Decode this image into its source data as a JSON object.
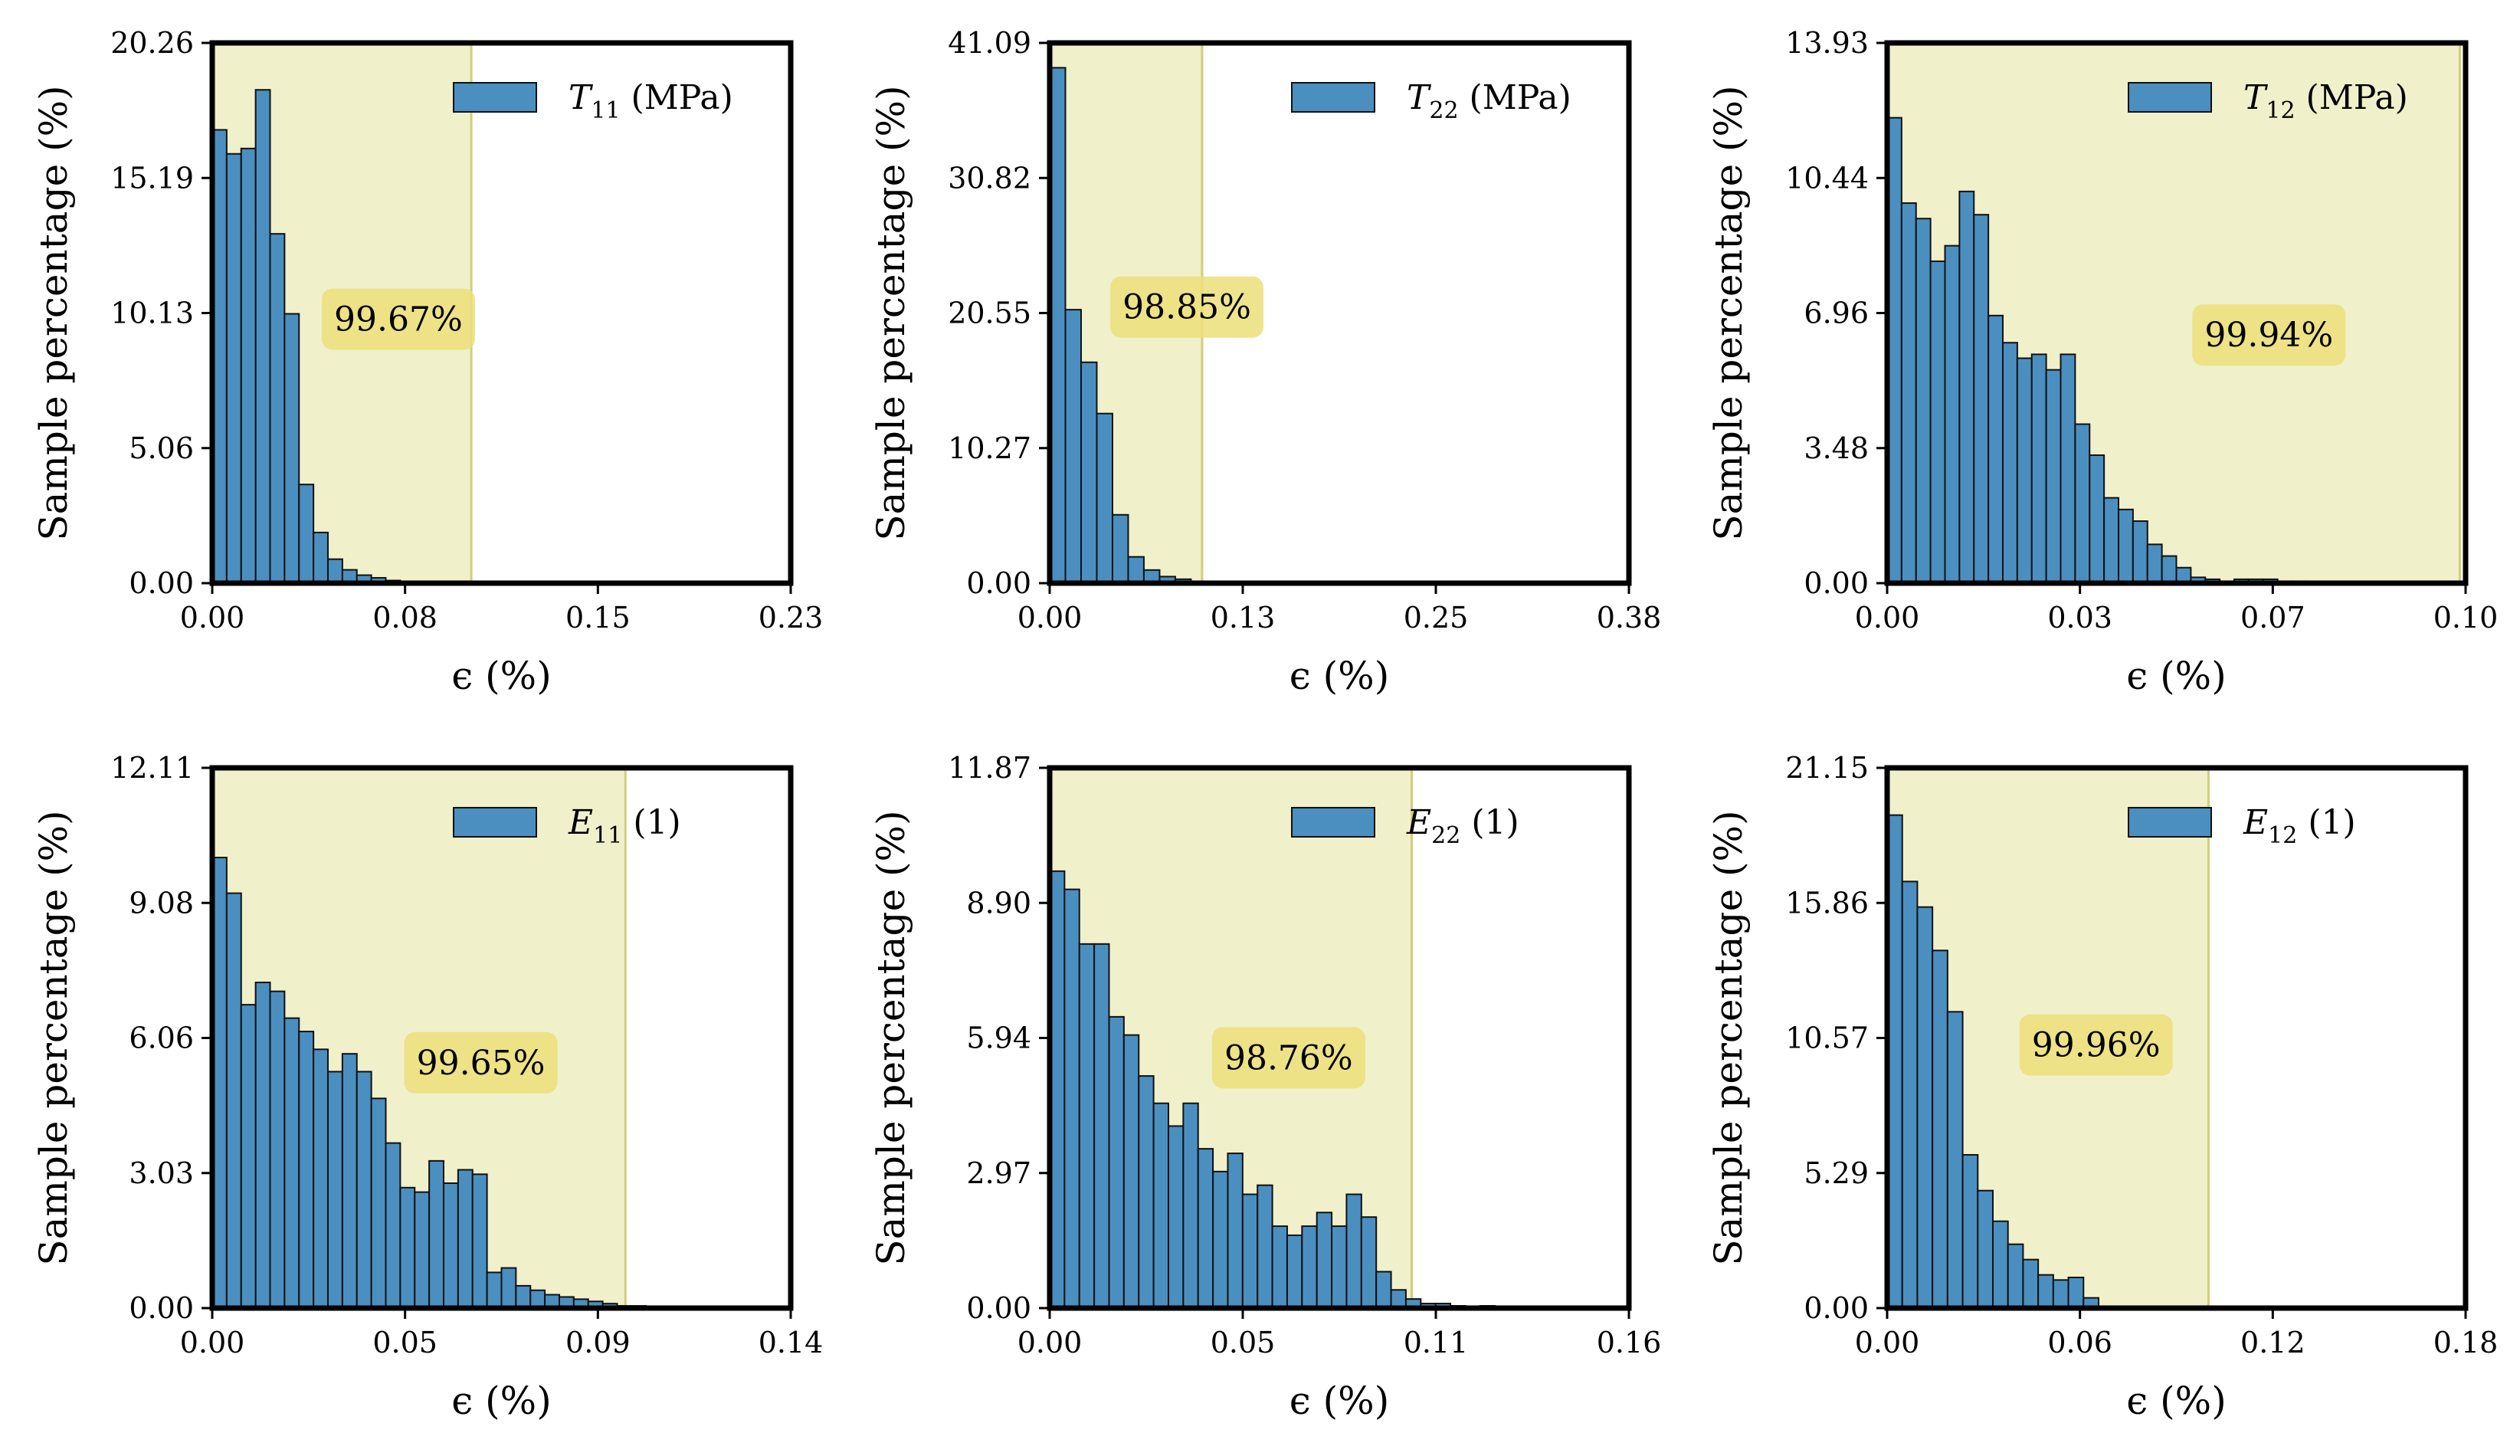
{
  "figure": {
    "colors": {
      "bar": "#4b8fc0",
      "bar_edge": "#111111",
      "shade": "#e6e6a8",
      "annotation_box": "#ecdf7a",
      "frame": "#000000"
    }
  },
  "chart_data": [
    {
      "type": "bar",
      "title": "",
      "legend": {
        "symbol": "T",
        "subscript": "11",
        "unit": "(MPa)"
      },
      "xlabel": "ϵ (%)",
      "ylabel": "Sample percentage (%)",
      "xlim": [
        0,
        0.23
      ],
      "ylim": [
        0,
        20.26
      ],
      "xticks": [
        "0.00",
        "0.08",
        "0.15",
        "0.23"
      ],
      "yticks": [
        "0.00",
        "5.06",
        "10.13",
        "15.19",
        "20.26"
      ],
      "bin_width": 0.00575,
      "values": [
        17.0,
        16.1,
        16.3,
        18.5,
        13.1,
        10.1,
        3.7,
        1.9,
        0.9,
        0.5,
        0.3,
        0.2,
        0.1,
        0.05,
        0.02
      ],
      "shaded_range": [
        0,
        0.103
      ],
      "annotation": {
        "text": "99.67%",
        "x": 0.074,
        "y": 9.9
      }
    },
    {
      "type": "bar",
      "title": "",
      "legend": {
        "symbol": "T",
        "subscript": "22",
        "unit": "(MPa)"
      },
      "xlabel": "ϵ (%)",
      "ylabel": "Sample percentage (%)",
      "xlim": [
        0,
        0.38
      ],
      "ylim": [
        0,
        41.09
      ],
      "xticks": [
        "0.00",
        "0.13",
        "0.25",
        "0.38"
      ],
      "yticks": [
        "0.00",
        "10.27",
        "20.55",
        "30.82",
        "41.09"
      ],
      "bin_width": 0.0103,
      "values": [
        39.2,
        20.8,
        16.8,
        12.9,
        5.2,
        2.0,
        1.0,
        0.5,
        0.3,
        0.1
      ],
      "shaded_range": [
        0,
        0.1
      ],
      "annotation": {
        "text": "98.85%",
        "x": 0.09,
        "y": 21.0
      }
    },
    {
      "type": "bar",
      "title": "",
      "legend": {
        "symbol": "T",
        "subscript": "12",
        "unit": "(MPa)"
      },
      "xlabel": "ϵ (%)",
      "ylabel": "Sample percentage (%)",
      "xlim": [
        0,
        0.1
      ],
      "ylim": [
        0,
        13.93
      ],
      "xticks": [
        "0.00",
        "0.03",
        "0.07",
        "0.10"
      ],
      "yticks": [
        "0.00",
        "3.48",
        "6.96",
        "10.44",
        "13.93"
      ],
      "bin_width": 0.0025,
      "values": [
        12.0,
        9.8,
        9.4,
        8.3,
        8.7,
        10.1,
        9.5,
        6.9,
        6.2,
        5.8,
        5.9,
        5.5,
        5.9,
        4.1,
        3.3,
        2.2,
        1.9,
        1.6,
        1.0,
        0.7,
        0.4,
        0.15,
        0.1,
        0.05,
        0.1,
        0.1,
        0.1,
        0.05,
        0.05,
        0.02,
        0.02,
        0.02
      ],
      "shaded_range": [
        0,
        0.099
      ],
      "annotation": {
        "text": "99.94%",
        "x": 0.066,
        "y": 6.4
      }
    },
    {
      "type": "bar",
      "title": "",
      "legend": {
        "symbol": "E",
        "subscript": "11",
        "unit": "(1)"
      },
      "xlabel": "ϵ (%)",
      "ylabel": "Sample percentage (%)",
      "xlim": [
        0,
        0.14
      ],
      "ylim": [
        0,
        12.11
      ],
      "xticks": [
        "0.00",
        "0.05",
        "0.09",
        "0.14"
      ],
      "yticks": [
        "0.00",
        "3.03",
        "6.06",
        "9.08",
        "12.11"
      ],
      "bin_width": 0.0035,
      "values": [
        10.1,
        9.3,
        6.8,
        7.3,
        7.1,
        6.5,
        6.2,
        5.8,
        5.3,
        5.7,
        5.3,
        4.7,
        3.7,
        2.7,
        2.6,
        3.3,
        2.8,
        3.1,
        3.0,
        0.8,
        0.9,
        0.5,
        0.4,
        0.3,
        0.25,
        0.2,
        0.15,
        0.1,
        0.05,
        0.05
      ],
      "shaded_range": [
        0,
        0.1
      ],
      "annotation": {
        "text": "99.65%",
        "x": 0.065,
        "y": 5.5
      }
    },
    {
      "type": "bar",
      "title": "",
      "legend": {
        "symbol": "E",
        "subscript": "22",
        "unit": "(1)"
      },
      "xlabel": "ϵ (%)",
      "ylabel": "Sample percentage (%)",
      "xlim": [
        0,
        0.16
      ],
      "ylim": [
        0,
        11.87
      ],
      "xticks": [
        "0.00",
        "0.05",
        "0.11",
        "0.16"
      ],
      "yticks": [
        "0.00",
        "2.97",
        "5.94",
        "8.90",
        "11.87"
      ],
      "bin_width": 0.0041,
      "values": [
        9.6,
        9.2,
        8.0,
        8.0,
        6.4,
        6.0,
        5.1,
        4.5,
        4.0,
        4.5,
        3.5,
        3.0,
        3.4,
        2.5,
        2.7,
        1.8,
        1.6,
        1.8,
        2.1,
        1.8,
        2.5,
        2.0,
        0.8,
        0.4,
        0.2,
        0.1,
        0.1,
        0.05,
        0.0,
        0.05,
        0.02,
        0.02,
        0.02
      ],
      "shaded_range": [
        0,
        0.1
      ],
      "annotation": {
        "text": "98.76%",
        "x": 0.066,
        "y": 5.5
      }
    },
    {
      "type": "bar",
      "title": "",
      "legend": {
        "symbol": "E",
        "subscript": "12",
        "unit": "(1)"
      },
      "xlabel": "ϵ (%)",
      "ylabel": "Sample percentage (%)",
      "xlim": [
        0,
        0.18
      ],
      "ylim": [
        0,
        21.15
      ],
      "xticks": [
        "0.00",
        "0.06",
        "0.12",
        "0.18"
      ],
      "yticks": [
        "0.00",
        "5.29",
        "10.57",
        "15.86",
        "21.15"
      ],
      "bin_width": 0.0047,
      "values": [
        19.3,
        16.7,
        15.7,
        14.0,
        11.6,
        6.0,
        4.6,
        3.4,
        2.5,
        1.9,
        1.3,
        1.1,
        1.2,
        0.4
      ],
      "shaded_range": [
        0,
        0.1
      ],
      "annotation": {
        "text": "99.96%",
        "x": 0.065,
        "y": 10.3
      }
    }
  ]
}
